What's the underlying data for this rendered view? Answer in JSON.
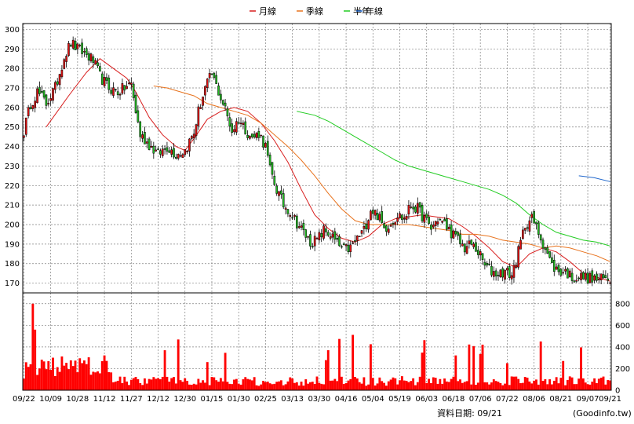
{
  "chart_data": {
    "type": "candlestick",
    "legend": {
      "placement": "top-center",
      "items": [
        {
          "label": "月線",
          "color": "#d81e1e"
        },
        {
          "label": "季線",
          "color": "#e8731e"
        },
        {
          "label": "半年",
          "color": "#22cc22"
        },
        {
          "label": "年線",
          "color": "#1e66cc"
        }
      ]
    },
    "colors": {
      "up": "#e01010",
      "down": "#22bb22",
      "volume": "#ff0000",
      "grid": "#808080"
    },
    "price_axis": {
      "ylim": [
        165,
        303
      ],
      "ticks": [
        170,
        180,
        190,
        200,
        210,
        220,
        230,
        240,
        250,
        260,
        270,
        280,
        290,
        300
      ],
      "side": "left"
    },
    "volume_axis": {
      "ylim": [
        0,
        900
      ],
      "ticks": [
        0,
        200,
        400,
        600,
        800
      ],
      "side": "right"
    },
    "x_tick_labels": [
      "09/22",
      "10/09",
      "10/28",
      "11/12",
      "11/27",
      "12/12",
      "12/30",
      "01/15",
      "01/30",
      "02/25",
      "03/13",
      "03/30",
      "04/16",
      "05/04",
      "05/19",
      "06/03",
      "06/18",
      "07/06",
      "07/22",
      "08/06",
      "08/21",
      "09/07",
      "09/21"
    ],
    "x_tick_days": [
      0,
      12,
      24,
      36,
      48,
      60,
      72,
      84,
      96,
      108,
      120,
      132,
      144,
      156,
      168,
      180,
      192,
      204,
      216,
      228,
      240,
      252,
      262
    ],
    "num_days": 263,
    "price_anchors": [
      [
        0,
        248
      ],
      [
        3,
        262
      ],
      [
        6,
        268
      ],
      [
        10,
        262
      ],
      [
        14,
        270
      ],
      [
        18,
        286
      ],
      [
        21,
        293
      ],
      [
        24,
        290
      ],
      [
        27,
        288
      ],
      [
        31,
        284
      ],
      [
        34,
        276
      ],
      [
        38,
        270
      ],
      [
        42,
        268
      ],
      [
        45,
        270
      ],
      [
        48,
        272
      ],
      [
        50,
        258
      ],
      [
        52,
        246
      ],
      [
        56,
        241
      ],
      [
        60,
        236
      ],
      [
        64,
        240
      ],
      [
        68,
        236
      ],
      [
        72,
        238
      ],
      [
        76,
        247
      ],
      [
        78,
        258
      ],
      [
        81,
        270
      ],
      [
        84,
        277
      ],
      [
        87,
        268
      ],
      [
        90,
        259
      ],
      [
        93,
        248
      ],
      [
        96,
        254
      ],
      [
        99,
        249
      ],
      [
        102,
        244
      ],
      [
        105,
        247
      ],
      [
        108,
        240
      ],
      [
        110,
        228
      ],
      [
        113,
        218
      ],
      [
        116,
        210
      ],
      [
        119,
        207
      ],
      [
        122,
        201
      ],
      [
        125,
        196
      ],
      [
        128,
        191
      ],
      [
        131,
        192
      ],
      [
        134,
        197
      ],
      [
        137,
        195
      ],
      [
        140,
        190
      ],
      [
        143,
        187
      ],
      [
        146,
        188
      ],
      [
        149,
        193
      ],
      [
        152,
        197
      ],
      [
        155,
        208
      ],
      [
        158,
        205
      ],
      [
        161,
        198
      ],
      [
        164,
        201
      ],
      [
        167,
        205
      ],
      [
        170,
        203
      ],
      [
        173,
        210
      ],
      [
        176,
        208
      ],
      [
        179,
        203
      ],
      [
        182,
        198
      ],
      [
        185,
        203
      ],
      [
        188,
        200
      ],
      [
        191,
        196
      ],
      [
        194,
        192
      ],
      [
        197,
        188
      ],
      [
        200,
        190
      ],
      [
        203,
        186
      ],
      [
        206,
        179
      ],
      [
        209,
        176
      ],
      [
        212,
        175
      ],
      [
        215,
        176
      ],
      [
        218,
        174
      ],
      [
        221,
        186
      ],
      [
        224,
        200
      ],
      [
        227,
        203
      ],
      [
        230,
        196
      ],
      [
        233,
        188
      ],
      [
        236,
        179
      ],
      [
        239,
        176
      ],
      [
        242,
        176
      ],
      [
        245,
        173
      ],
      [
        248,
        173
      ],
      [
        251,
        173
      ],
      [
        254,
        172
      ],
      [
        257,
        172
      ],
      [
        260,
        172
      ],
      [
        262,
        172
      ]
    ],
    "ma_lines": [
      {
        "label": "月線",
        "color": "#d81e1e",
        "points": [
          [
            10,
            250
          ],
          [
            20,
            266
          ],
          [
            28,
            278
          ],
          [
            34,
            285
          ],
          [
            40,
            280
          ],
          [
            46,
            275
          ],
          [
            50,
            268
          ],
          [
            56,
            255
          ],
          [
            62,
            246
          ],
          [
            68,
            240
          ],
          [
            72,
            238
          ],
          [
            76,
            244
          ],
          [
            82,
            254
          ],
          [
            88,
            258
          ],
          [
            94,
            260
          ],
          [
            100,
            258
          ],
          [
            106,
            252
          ],
          [
            112,
            243
          ],
          [
            118,
            232
          ],
          [
            124,
            218
          ],
          [
            130,
            205
          ],
          [
            136,
            198
          ],
          [
            142,
            193
          ],
          [
            148,
            191
          ],
          [
            154,
            194
          ],
          [
            160,
            200
          ],
          [
            166,
            203
          ],
          [
            172,
            204
          ],
          [
            178,
            205
          ],
          [
            184,
            204
          ],
          [
            190,
            203
          ],
          [
            196,
            199
          ],
          [
            202,
            194
          ],
          [
            208,
            188
          ],
          [
            214,
            181
          ],
          [
            220,
            178
          ],
          [
            226,
            185
          ],
          [
            232,
            188
          ],
          [
            238,
            186
          ],
          [
            244,
            181
          ],
          [
            250,
            175
          ],
          [
            256,
            173
          ],
          [
            262,
            171
          ]
        ]
      },
      {
        "label": "季線",
        "color": "#e8731e",
        "points": [
          [
            58,
            271
          ],
          [
            64,
            270
          ],
          [
            70,
            268
          ],
          [
            76,
            266
          ],
          [
            82,
            262
          ],
          [
            88,
            260
          ],
          [
            94,
            258
          ],
          [
            100,
            256
          ],
          [
            106,
            252
          ],
          [
            112,
            246
          ],
          [
            118,
            240
          ],
          [
            124,
            233
          ],
          [
            130,
            225
          ],
          [
            136,
            216
          ],
          [
            142,
            208
          ],
          [
            148,
            202
          ],
          [
            154,
            200
          ],
          [
            160,
            200
          ],
          [
            166,
            200
          ],
          [
            172,
            200
          ],
          [
            178,
            199
          ],
          [
            184,
            198
          ],
          [
            190,
            197
          ],
          [
            196,
            195
          ],
          [
            202,
            195
          ],
          [
            208,
            194
          ],
          [
            214,
            192
          ],
          [
            220,
            191
          ],
          [
            226,
            190
          ],
          [
            232,
            188
          ],
          [
            238,
            189
          ],
          [
            244,
            188
          ],
          [
            250,
            186
          ],
          [
            256,
            184
          ],
          [
            262,
            181
          ]
        ]
      },
      {
        "label": "半年",
        "color": "#22cc22",
        "points": [
          [
            122,
            258
          ],
          [
            130,
            256
          ],
          [
            136,
            253
          ],
          [
            142,
            249
          ],
          [
            148,
            245
          ],
          [
            154,
            241
          ],
          [
            160,
            237
          ],
          [
            166,
            233
          ],
          [
            172,
            230
          ],
          [
            178,
            228
          ],
          [
            184,
            226
          ],
          [
            190,
            224
          ],
          [
            196,
            222
          ],
          [
            202,
            220
          ],
          [
            208,
            218
          ],
          [
            214,
            215
          ],
          [
            220,
            211
          ],
          [
            226,
            205
          ],
          [
            232,
            200
          ],
          [
            238,
            196
          ],
          [
            244,
            194
          ],
          [
            250,
            192
          ],
          [
            256,
            191
          ],
          [
            262,
            189
          ]
        ]
      },
      {
        "label": "年線",
        "color": "#1e66cc",
        "points": [
          [
            248,
            225
          ],
          [
            255,
            224
          ],
          [
            262,
            222
          ]
        ]
      }
    ]
  },
  "footer": {
    "date_label": "資料日期: 09/21",
    "source": "(Goodinfo.tw)"
  }
}
